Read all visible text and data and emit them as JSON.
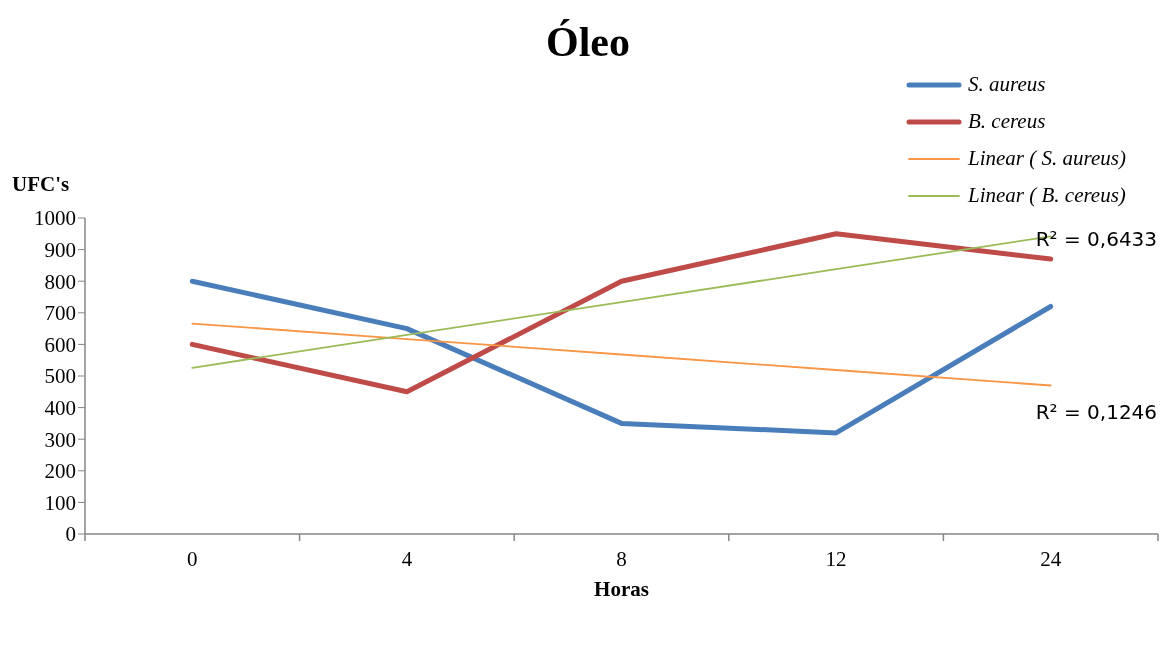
{
  "chart_data": {
    "type": "line",
    "title": "Óleo",
    "xlabel": "Horas",
    "ylabel": "UFC's",
    "categories": [
      "0",
      "4",
      "8",
      "12",
      "24"
    ],
    "series": [
      {
        "name": "S. aureus",
        "color": "#4a7ebb",
        "values": [
          800,
          650,
          350,
          320,
          720
        ]
      },
      {
        "name": "B. cereus",
        "color": "#be4b48",
        "values": [
          600,
          450,
          800,
          950,
          870
        ]
      },
      {
        "name": "Linear ( S. aureus)",
        "type": "line",
        "color": "#f79646",
        "values": [
          666,
          617,
          568,
          519,
          470
        ]
      },
      {
        "name": "Linear ( B. cereus)",
        "type": "line",
        "color": "#9bbb59",
        "values": [
          526,
          630,
          734,
          838,
          942
        ]
      }
    ],
    "ylim": [
      0,
      1000
    ],
    "yticks": [
      0,
      100,
      200,
      300,
      400,
      500,
      600,
      700,
      800,
      900,
      1000
    ],
    "annotations": [
      {
        "text": "R² = 0,6433",
        "x": "24",
        "y": 942
      },
      {
        "text": "R² = 0,1246",
        "x": "24",
        "y": 470
      }
    ],
    "legend": "top right",
    "grid": false,
    "marker": "none",
    "line_style": "solid"
  }
}
